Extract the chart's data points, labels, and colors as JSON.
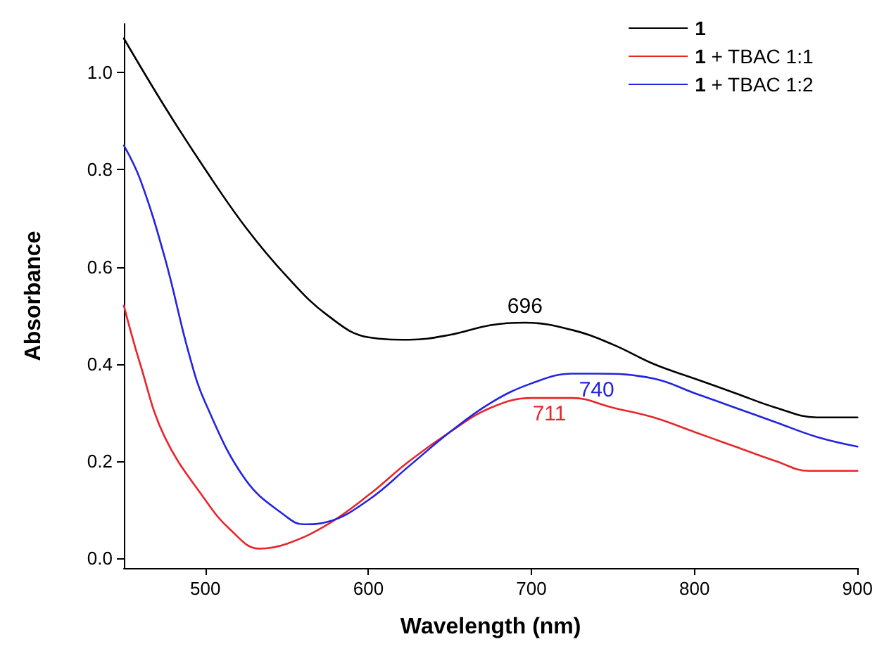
{
  "chart_data": {
    "type": "line",
    "xlabel": "Wavelength (nm)",
    "ylabel": "Absorbance",
    "xlim": [
      450,
      900
    ],
    "xticks": [
      500,
      600,
      700,
      800,
      900
    ],
    "ylim": [
      -0.02,
      1.1
    ],
    "yticks": [
      {
        "value": 0,
        "label": "0.0"
      },
      {
        "value": 0.2,
        "label": "0.2"
      },
      {
        "value": 0.4,
        "label": "0.4"
      },
      {
        "value": 0.6,
        "label": "0.6"
      },
      {
        "value": 0.8,
        "label": "0.8"
      },
      {
        "value": 1,
        "label": "1.0"
      }
    ],
    "grid": false,
    "legend": "top right",
    "marker": "none",
    "line_style": "solid",
    "series": [
      {
        "name": "1",
        "color": "#000000",
        "x": [
          450,
          475,
          500,
          525,
          550,
          575,
          600,
          625,
          650,
          675,
          696,
          725,
          750,
          775,
          800,
          825,
          850,
          875,
          900
        ],
        "values": [
          1.07,
          0.93,
          0.8,
          0.68,
          0.58,
          0.5,
          0.455,
          0.45,
          0.46,
          0.48,
          0.485,
          0.47,
          0.44,
          0.4,
          0.37,
          0.34,
          0.31,
          0.29,
          0.29
        ]
      },
      {
        "name": "1 + TBAC 1:1",
        "color": "#e8262b",
        "x": [
          450,
          460,
          475,
          500,
          515,
          533,
          550,
          575,
          600,
          625,
          650,
          675,
          700,
          711,
          725,
          750,
          775,
          800,
          825,
          850,
          870,
          900
        ],
        "values": [
          0.52,
          0.4,
          0.25,
          0.12,
          0.06,
          0.02,
          0.03,
          0.07,
          0.13,
          0.2,
          0.26,
          0.31,
          0.33,
          0.33,
          0.33,
          0.31,
          0.29,
          0.26,
          0.23,
          0.2,
          0.18,
          0.18
        ]
      },
      {
        "name": "1 + TBAC 1:2",
        "color": "#2323e0",
        "x": [
          450,
          460,
          475,
          490,
          500,
          525,
          550,
          560,
          575,
          600,
          625,
          650,
          675,
          700,
          725,
          740,
          775,
          800,
          825,
          850,
          875,
          900
        ],
        "values": [
          0.85,
          0.78,
          0.62,
          0.42,
          0.32,
          0.16,
          0.085,
          0.07,
          0.075,
          0.12,
          0.19,
          0.26,
          0.32,
          0.36,
          0.38,
          0.38,
          0.37,
          0.34,
          0.31,
          0.28,
          0.25,
          0.23
        ]
      }
    ],
    "annotations": [
      {
        "text": "696",
        "x": 696,
        "y": 0.485
      },
      {
        "text": "740",
        "x": 740,
        "y": 0.38
      },
      {
        "text": "711",
        "x": 711,
        "y": 0.33
      }
    ]
  }
}
